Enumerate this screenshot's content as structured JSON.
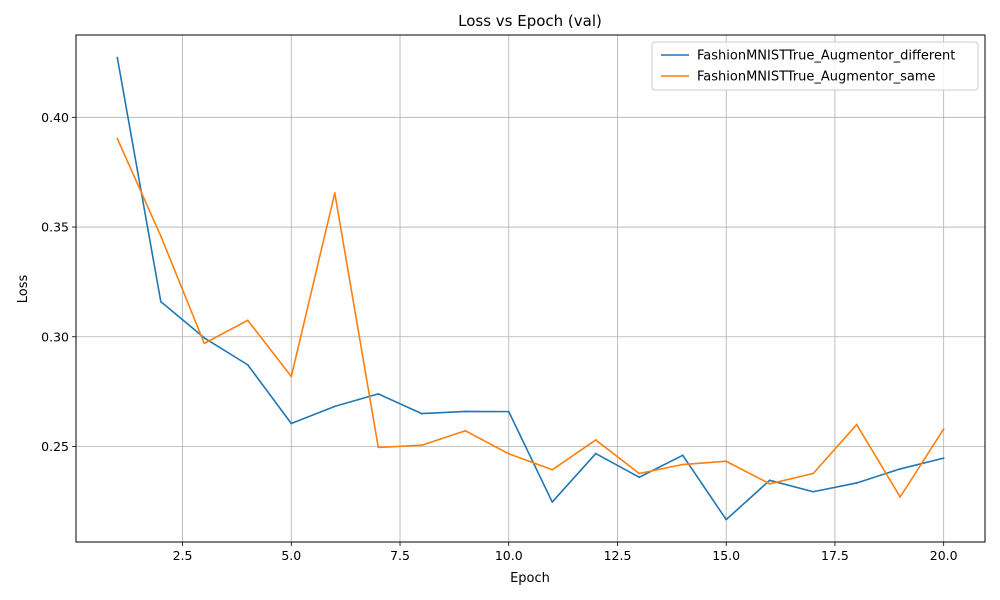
{
  "chart_data": {
    "type": "line",
    "title": "Loss vs Epoch (val)",
    "xlabel": "Epoch",
    "ylabel": "Loss",
    "xlim": [
      0.05,
      20.95
    ],
    "ylim": [
      0.2065,
      0.4375
    ],
    "x_ticks": [
      2.5,
      5.0,
      7.5,
      10.0,
      12.5,
      15.0,
      17.5,
      20.0
    ],
    "x_tick_labels": [
      "2.5",
      "5.0",
      "7.5",
      "10.0",
      "12.5",
      "15.0",
      "17.5",
      "20.0"
    ],
    "y_ticks": [
      0.25,
      0.3,
      0.35,
      0.4
    ],
    "y_tick_labels": [
      "0.25",
      "0.30",
      "0.35",
      "0.40"
    ],
    "grid": true,
    "legend_position": "top-right",
    "x": [
      1,
      2,
      3,
      4,
      5,
      6,
      7,
      8,
      9,
      10,
      11,
      12,
      13,
      14,
      15,
      16,
      17,
      18,
      19,
      20
    ],
    "series": [
      {
        "name": "FashionMNISTTrue_Augmentor_different",
        "color": "#1f77b4",
        "values": [
          0.4272,
          0.316,
          0.2995,
          0.2872,
          0.2605,
          0.2683,
          0.274,
          0.265,
          0.266,
          0.2659,
          0.2247,
          0.2468,
          0.236,
          0.246,
          0.2167,
          0.2346,
          0.2294,
          0.2334,
          0.2398,
          0.2447
        ]
      },
      {
        "name": "FashionMNISTTrue_Augmentor_same",
        "color": "#ff7f0e",
        "values": [
          0.3903,
          0.3459,
          0.297,
          0.3075,
          0.2819,
          0.3655,
          0.2496,
          0.2506,
          0.2572,
          0.2467,
          0.2394,
          0.253,
          0.2377,
          0.2418,
          0.2433,
          0.233,
          0.2377,
          0.26,
          0.227,
          0.258
        ]
      }
    ]
  }
}
